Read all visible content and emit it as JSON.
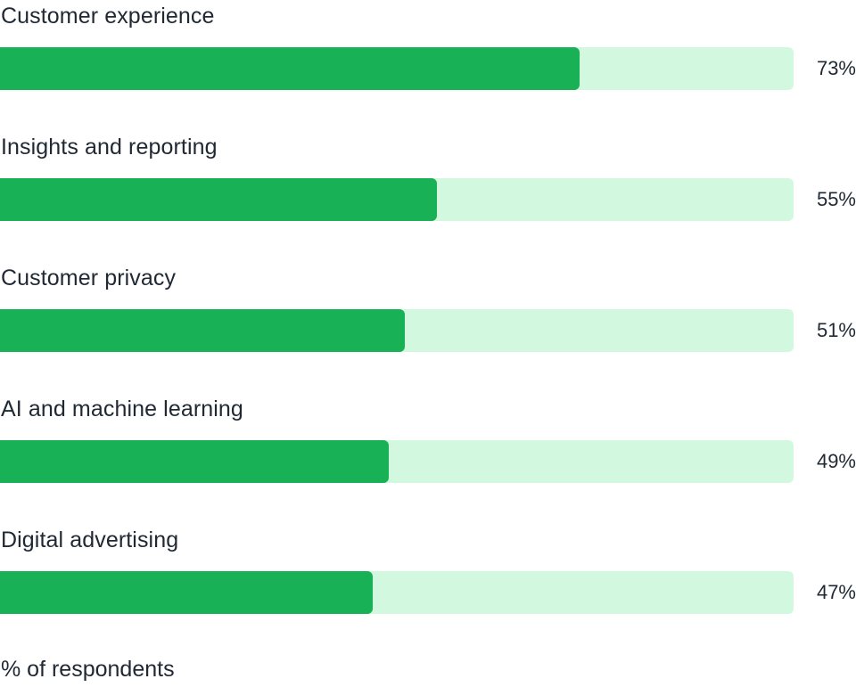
{
  "chart_data": {
    "type": "bar",
    "orientation": "horizontal",
    "categories": [
      "Customer experience",
      "Insights and reporting",
      "Customer privacy",
      "AI and machine learning",
      "Digital advertising"
    ],
    "values": [
      73,
      55,
      51,
      49,
      47
    ],
    "value_labels": [
      "73%",
      "55%",
      "51%",
      "49%",
      "47%"
    ],
    "xlim": [
      0,
      100
    ],
    "xlabel": "% of respondents",
    "grid": false,
    "colors": {
      "bar": "#18b156",
      "track": "#d3f8e0",
      "text": "#1f2833"
    }
  }
}
